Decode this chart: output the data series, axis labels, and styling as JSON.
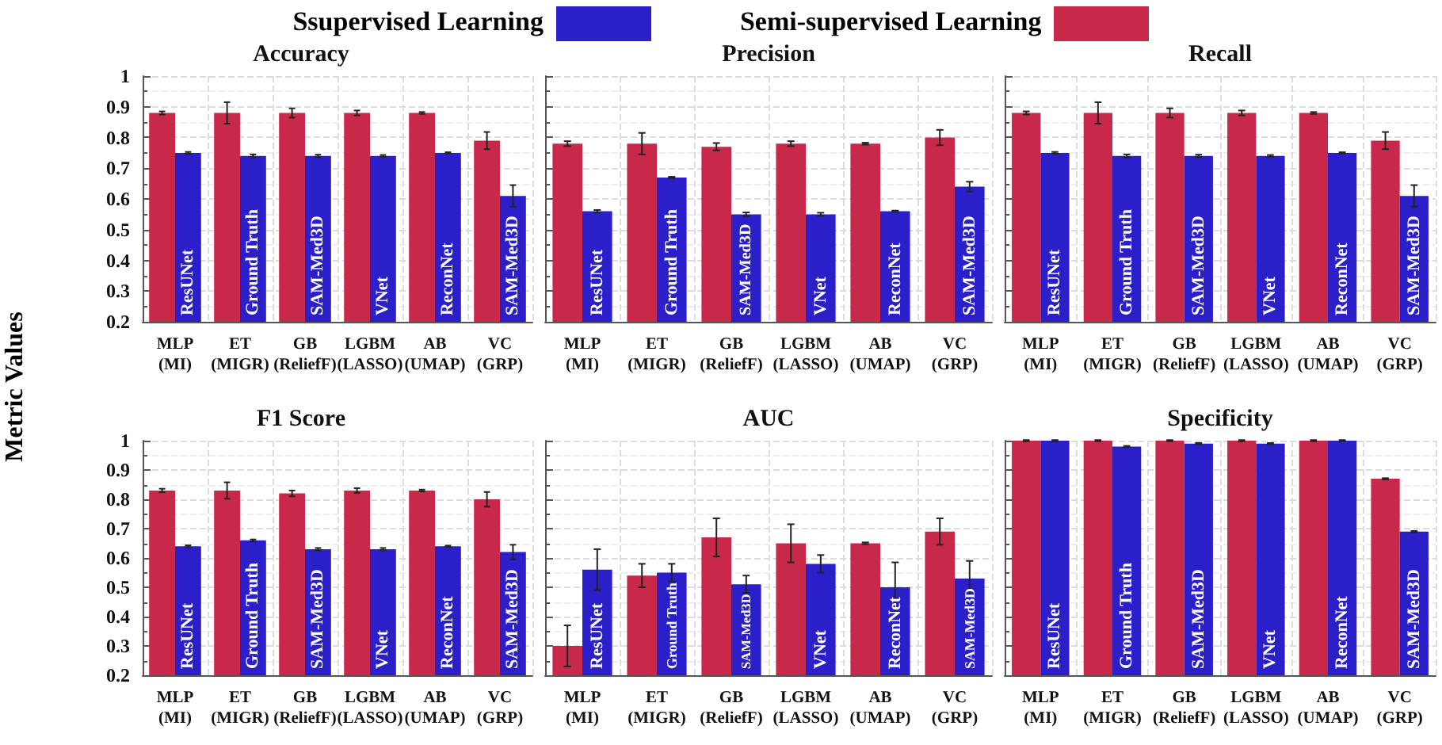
{
  "chart_data": [
    {
      "type": "bar",
      "title": "Accuracy",
      "ylabel": "Metric Values",
      "legend": "top",
      "grid": true,
      "categories": [
        "MLP\n(MI)",
        "ET\n(MIGR)",
        "GB\n(ReliefF)",
        "LGBM\n(LASSO)",
        "AB\n(UMAP)",
        "VC\n(GRP)"
      ],
      "ylim": [
        0.2,
        1.0
      ],
      "yticks": [
        0.2,
        0.3,
        0.4,
        0.5,
        0.6,
        0.7,
        0.8,
        0.9,
        1.0
      ],
      "series": [
        {
          "name": "Semi-supervised Learning",
          "color": "#c8284a",
          "values": [
            0.88,
            0.88,
            0.88,
            0.88,
            0.88,
            0.79
          ],
          "errors": [
            0.005,
            0.035,
            0.015,
            0.008,
            0.003,
            0.028
          ]
        },
        {
          "name": "Ssupervised Learning",
          "color": "#2a1fc8",
          "values": [
            0.75,
            0.74,
            0.74,
            0.74,
            0.75,
            0.61
          ],
          "errors": [
            0.003,
            0.005,
            0.004,
            0.003,
            0.002,
            0.035
          ]
        }
      ],
      "annotations": [
        {
          "text": "ResUNet",
          "x": "MLP\n(MI)"
        },
        {
          "text": "Ground Truth",
          "x": "ET\n(MIGR)"
        },
        {
          "text": "SAM-Med3D",
          "x": "GB\n(ReliefF)"
        },
        {
          "text": "VNet",
          "x": "LGBM\n(LASSO)"
        },
        {
          "text": "ReconNet",
          "x": "AB\n(UMAP)"
        },
        {
          "text": "SAM-Med3D",
          "x": "VC\n(GRP)"
        }
      ]
    },
    {
      "type": "bar",
      "title": "Precision",
      "grid": true,
      "tick_labels": "x",
      "categories": [
        "MLP\n(MI)",
        "ET\n(MIGR)",
        "GB\n(ReliefF)",
        "LGBM\n(LASSO)",
        "AB\n(UMAP)",
        "VC\n(GRP)"
      ],
      "ylim": [
        0.2,
        1.0
      ],
      "yticks": [
        0.2,
        0.3,
        0.4,
        0.5,
        0.6,
        0.7,
        0.8,
        0.9,
        1.0
      ],
      "series": [
        {
          "color": "#c8284a",
          "values": [
            0.78,
            0.78,
            0.77,
            0.78,
            0.78,
            0.8
          ],
          "errors": [
            0.008,
            0.035,
            0.012,
            0.008,
            0.003,
            0.025
          ]
        },
        {
          "color": "#2a1fc8",
          "values": [
            0.56,
            0.67,
            0.55,
            0.55,
            0.56,
            0.64
          ],
          "errors": [
            0.004,
            0.002,
            0.006,
            0.005,
            0.002,
            0.016
          ]
        }
      ],
      "annotations": [
        {
          "text": "ResUNet",
          "x": "MLP\n(MI)"
        },
        {
          "text": "Ground Truth",
          "x": "ET\n(MIGR)"
        },
        {
          "text": "SAM-Med3D",
          "x": "GB\n(ReliefF)"
        },
        {
          "text": "VNet",
          "x": "LGBM\n(LASSO)"
        },
        {
          "text": "ReconNet",
          "x": "AB\n(UMAP)"
        },
        {
          "text": "SAM-Med3D",
          "x": "VC\n(GRP)"
        }
      ]
    },
    {
      "type": "bar",
      "title": "Recall",
      "grid": true,
      "tick_labels": "x",
      "categories": [
        "MLP\n(MI)",
        "ET\n(MIGR)",
        "GB\n(ReliefF)",
        "LGBM\n(LASSO)",
        "AB\n(UMAP)",
        "VC\n(GRP)"
      ],
      "ylim": [
        0.2,
        1.0
      ],
      "yticks": [
        0.2,
        0.3,
        0.4,
        0.5,
        0.6,
        0.7,
        0.8,
        0.9,
        1.0
      ],
      "series": [
        {
          "color": "#c8284a",
          "values": [
            0.88,
            0.88,
            0.88,
            0.88,
            0.88,
            0.79
          ],
          "errors": [
            0.005,
            0.035,
            0.015,
            0.008,
            0.003,
            0.028
          ]
        },
        {
          "color": "#2a1fc8",
          "values": [
            0.75,
            0.74,
            0.74,
            0.74,
            0.75,
            0.61
          ],
          "errors": [
            0.003,
            0.005,
            0.004,
            0.003,
            0.002,
            0.035
          ]
        }
      ],
      "annotations": [
        {
          "text": "ResUNet",
          "x": "MLP\n(MI)"
        },
        {
          "text": "Ground Truth",
          "x": "ET\n(MIGR)"
        },
        {
          "text": "SAM-Med3D",
          "x": "GB\n(ReliefF)"
        },
        {
          "text": "VNet",
          "x": "LGBM\n(LASSO)"
        },
        {
          "text": "ReconNet",
          "x": "AB\n(UMAP)"
        },
        {
          "text": "SAM-Med3D",
          "x": "VC\n(GRP)"
        }
      ]
    },
    {
      "type": "bar",
      "title": "F1 Score",
      "grid": true,
      "categories": [
        "MLP\n(MI)",
        "ET\n(MIGR)",
        "GB\n(ReliefF)",
        "LGBM\n(LASSO)",
        "AB\n(UMAP)",
        "VC\n(GRP)"
      ],
      "ylim": [
        0.2,
        1.0
      ],
      "yticks": [
        0.2,
        0.3,
        0.4,
        0.5,
        0.6,
        0.7,
        0.8,
        0.9,
        1.0
      ],
      "series": [
        {
          "color": "#c8284a",
          "values": [
            0.83,
            0.83,
            0.82,
            0.83,
            0.83,
            0.8
          ],
          "errors": [
            0.006,
            0.028,
            0.01,
            0.008,
            0.003,
            0.025
          ]
        },
        {
          "color": "#2a1fc8",
          "values": [
            0.64,
            0.66,
            0.63,
            0.63,
            0.64,
            0.62
          ],
          "errors": [
            0.003,
            0.003,
            0.004,
            0.004,
            0.002,
            0.025
          ]
        }
      ],
      "annotations": [
        {
          "text": "ResUNet",
          "x": "MLP\n(MI)"
        },
        {
          "text": "Ground Truth",
          "x": "ET\n(MIGR)"
        },
        {
          "text": "SAM-Med3D",
          "x": "GB\n(ReliefF)"
        },
        {
          "text": "VNet",
          "x": "LGBM\n(LASSO)"
        },
        {
          "text": "ReconNet",
          "x": "AB\n(UMAP)"
        },
        {
          "text": "SAM-Med3D",
          "x": "VC\n(GRP)"
        }
      ]
    },
    {
      "type": "bar",
      "title": "AUC",
      "grid": true,
      "tick_labels": "x",
      "categories": [
        "MLP\n(MI)",
        "ET\n(MIGR)",
        "GB\n(ReliefF)",
        "LGBM\n(LASSO)",
        "AB\n(UMAP)",
        "VC\n(GRP)"
      ],
      "ylim": [
        0.2,
        1.0
      ],
      "yticks": [
        0.2,
        0.3,
        0.4,
        0.5,
        0.6,
        0.7,
        0.8,
        0.9,
        1.0
      ],
      "series": [
        {
          "color": "#c8284a",
          "values": [
            0.3,
            0.54,
            0.67,
            0.65,
            0.65,
            0.69
          ],
          "errors": [
            0.07,
            0.04,
            0.065,
            0.065,
            0.003,
            0.045
          ]
        },
        {
          "color": "#2a1fc8",
          "values": [
            0.56,
            0.55,
            0.51,
            0.58,
            0.5,
            0.53
          ],
          "errors": [
            0.07,
            0.03,
            0.03,
            0.03,
            0.085,
            0.06
          ]
        }
      ],
      "annotations": [
        {
          "text": "ResUNet",
          "x": "MLP\n(MI)"
        },
        {
          "text": "Ground Truth",
          "x": "ET\n(MIGR)"
        },
        {
          "text": "SAM-Med3D",
          "x": "GB\n(ReliefF)"
        },
        {
          "text": "VNet",
          "x": "LGBM\n(LASSO)"
        },
        {
          "text": "ReconNet",
          "x": "AB\n(UMAP)"
        },
        {
          "text": "SAM-Med3D",
          "x": "VC\n(GRP)"
        }
      ]
    },
    {
      "type": "bar",
      "title": "Specificity",
      "grid": true,
      "tick_labels": "x",
      "categories": [
        "MLP\n(MI)",
        "ET\n(MIGR)",
        "GB\n(ReliefF)",
        "LGBM\n(LASSO)",
        "AB\n(UMAP)",
        "VC\n(GRP)"
      ],
      "ylim": [
        0.2,
        1.0
      ],
      "yticks": [
        0.2,
        0.3,
        0.4,
        0.5,
        0.6,
        0.7,
        0.8,
        0.9,
        1.0
      ],
      "series": [
        {
          "color": "#c8284a",
          "values": [
            1.0,
            1.0,
            1.0,
            1.0,
            1.0,
            0.87
          ],
          "errors": [
            0.002,
            0.002,
            0.002,
            0.002,
            0.002,
            0.002
          ]
        },
        {
          "color": "#2a1fc8",
          "values": [
            1.0,
            0.98,
            0.99,
            0.99,
            1.0,
            0.69
          ],
          "errors": [
            0.002,
            0.002,
            0.002,
            0.002,
            0.002,
            0.002
          ]
        }
      ],
      "annotations": [
        {
          "text": "ResUNet",
          "x": "MLP\n(MI)"
        },
        {
          "text": "Ground Truth",
          "x": "ET\n(MIGR)"
        },
        {
          "text": "SAM-Med3D",
          "x": "GB\n(ReliefF)"
        },
        {
          "text": "VNet",
          "x": "LGBM\n(LASSO)"
        },
        {
          "text": "ReconNet",
          "x": "AB\n(UMAP)"
        },
        {
          "text": "SAM-Med3D",
          "x": "VC\n(GRP)"
        }
      ]
    }
  ]
}
